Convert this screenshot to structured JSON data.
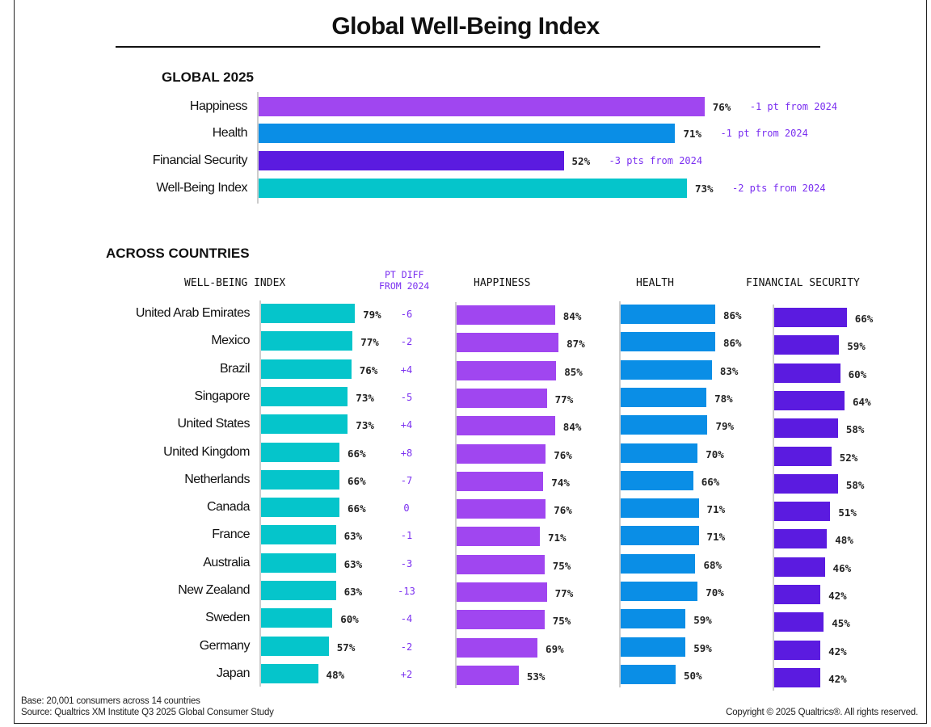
{
  "title": "Global Well-Being Index",
  "colors": {
    "happiness": "#a046f0",
    "health": "#0a8ee6",
    "financial_security": "#5b1be0",
    "well_being_index": "#05c5cb",
    "diff_text": "#7a2ff0"
  },
  "chart_data": [
    {
      "type": "bar",
      "orientation": "horizontal",
      "title": "GLOBAL 2025",
      "categories": [
        "Happiness",
        "Health",
        "Financial Security",
        "Well-Being Index"
      ],
      "values": [
        76,
        71,
        52,
        73
      ],
      "value_labels": [
        "76%",
        "71%",
        "52%",
        "73%"
      ],
      "annotations": [
        "-1 pt from 2024",
        "-1 pt from 2024",
        "-3 pts from 2024",
        "-2 pts from 2024"
      ],
      "xlim": [
        0,
        100
      ],
      "grid": false
    },
    {
      "type": "bar",
      "orientation": "horizontal",
      "title": "ACROSS COUNTRIES",
      "categories": [
        "United Arab Emirates",
        "Mexico",
        "Brazil",
        "Singapore",
        "United States",
        "United Kingdom",
        "Netherlands",
        "Canada",
        "France",
        "Australia",
        "New Zealand",
        "Sweden",
        "Germany",
        "Japan"
      ],
      "diff_header": [
        "PT DIFF",
        "FROM 2024"
      ],
      "diff_values": [
        "-6",
        "-2",
        "+4",
        "-5",
        "+4",
        "+8",
        "-7",
        "0",
        "-1",
        "-3",
        "-13",
        "-4",
        "-2",
        "+2"
      ],
      "series": [
        {
          "name": "WELL-BEING INDEX",
          "values": [
            79,
            77,
            76,
            73,
            73,
            66,
            66,
            66,
            63,
            63,
            63,
            60,
            57,
            48
          ]
        },
        {
          "name": "HAPPINESS",
          "values": [
            84,
            87,
            85,
            77,
            84,
            76,
            74,
            76,
            71,
            75,
            77,
            75,
            69,
            53
          ]
        },
        {
          "name": "HEALTH",
          "values": [
            86,
            86,
            83,
            78,
            79,
            70,
            66,
            71,
            71,
            68,
            70,
            59,
            59,
            50
          ]
        },
        {
          "name": "FINANCIAL SECURITY",
          "values": [
            66,
            59,
            60,
            64,
            58,
            52,
            58,
            51,
            48,
            46,
            42,
            45,
            42,
            42
          ]
        }
      ],
      "xlim": [
        0,
        100
      ],
      "grid": false
    }
  ],
  "footer": {
    "base": "Base: 20,001 consumers across 14 countries",
    "source": "Source: Qualtrics XM Institute Q3 2025 Global Consumer Study",
    "copyright": "Copyright © 2025 Qualtrics®. All rights reserved."
  }
}
